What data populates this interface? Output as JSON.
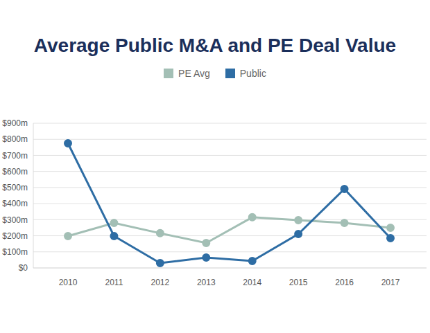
{
  "chart_data": {
    "type": "line",
    "title": "Average Public M&A and PE Deal Value",
    "categories": [
      "2010",
      "2011",
      "2012",
      "2013",
      "2014",
      "2015",
      "2016",
      "2017"
    ],
    "series": [
      {
        "name": "PE Avg",
        "color": "#a3bfb5",
        "marker": "circle",
        "values": [
          198,
          280,
          216,
          155,
          315,
          297,
          280,
          250
        ]
      },
      {
        "name": "Public",
        "color": "#2e6da4",
        "marker": "circle",
        "values": [
          775,
          198,
          30,
          65,
          43,
          211,
          491,
          185
        ]
      }
    ],
    "ylim": [
      0,
      900
    ],
    "yticks": [
      {
        "value": 0,
        "label": "$0"
      },
      {
        "value": 100,
        "label": "$100m"
      },
      {
        "value": 200,
        "label": "$200m"
      },
      {
        "value": 300,
        "label": "$300m"
      },
      {
        "value": 400,
        "label": "$400m"
      },
      {
        "value": 500,
        "label": "$500m"
      },
      {
        "value": 600,
        "label": "$600m"
      },
      {
        "value": 700,
        "label": "$700m"
      },
      {
        "value": 800,
        "label": "$800m"
      },
      {
        "value": 900,
        "label": "$900m"
      }
    ],
    "grid": true,
    "legend": "top"
  }
}
